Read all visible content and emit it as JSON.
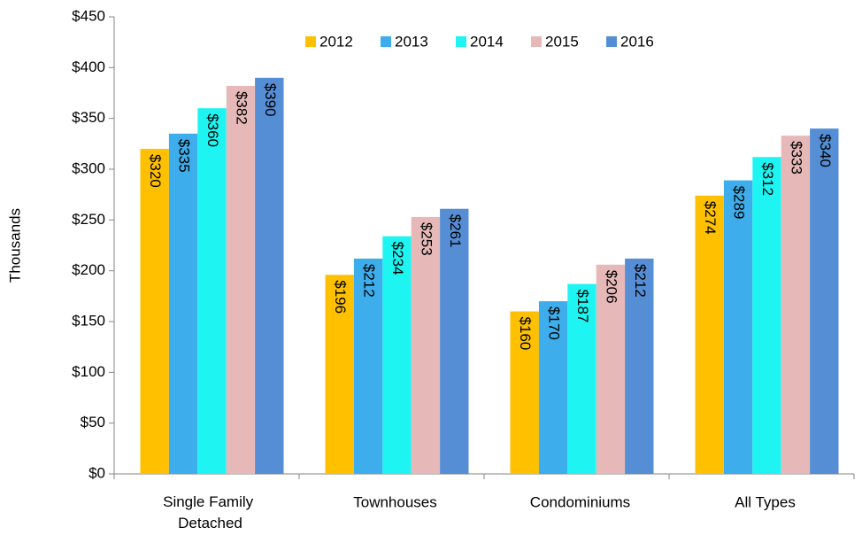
{
  "chart_data": {
    "type": "bar",
    "y_label": "Thousands",
    "categories": [
      "Single Family Detached",
      "Townhouses",
      "Condominiums",
      "All Types"
    ],
    "series": [
      {
        "name": "2012",
        "color": "#ffc000",
        "values": [
          320,
          196,
          160,
          274
        ],
        "value_labels": [
          "$320",
          "$196",
          "$160",
          "$274"
        ]
      },
      {
        "name": "2013",
        "color": "#3daeeb",
        "values": [
          335,
          212,
          170,
          289
        ],
        "value_labels": [
          "$335",
          "$212",
          "$170",
          "$289"
        ]
      },
      {
        "name": "2014",
        "color": "#1ef5f2",
        "values": [
          360,
          234,
          187,
          312
        ],
        "value_labels": [
          "$360",
          "$234",
          "$187",
          "$312"
        ]
      },
      {
        "name": "2015",
        "color": "#e6b9b8",
        "values": [
          382,
          253,
          206,
          333
        ],
        "value_labels": [
          "$382",
          "$253",
          "$206",
          "$333"
        ]
      },
      {
        "name": "2016",
        "color": "#558ed5",
        "values": [
          390,
          261,
          212,
          340
        ],
        "value_labels": [
          "$390",
          "$261",
          "$212",
          "$340"
        ]
      }
    ],
    "ylim": [
      0,
      450
    ],
    "yticks": [
      {
        "value": 0,
        "label": "$0"
      },
      {
        "value": 50,
        "label": "$50"
      },
      {
        "value": 100,
        "label": "$100"
      },
      {
        "value": 150,
        "label": "$150"
      },
      {
        "value": 200,
        "label": "$200"
      },
      {
        "value": 250,
        "label": "$250"
      },
      {
        "value": 300,
        "label": "$300"
      },
      {
        "value": 350,
        "label": "$350"
      },
      {
        "value": 400,
        "label": "$400"
      },
      {
        "value": 450,
        "label": "$450"
      }
    ],
    "grid": false,
    "legend": "top"
  }
}
